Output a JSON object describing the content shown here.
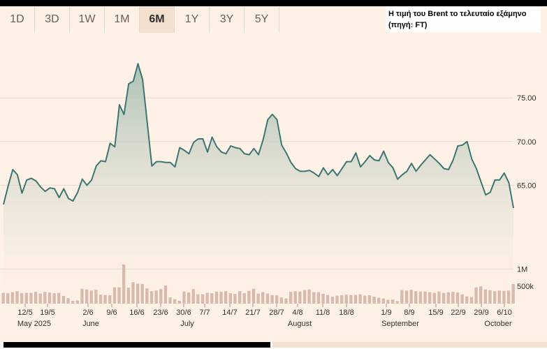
{
  "caption": {
    "line1": "Η τιμή του Brent το τελευταίο εξάμηνο",
    "line2": "(πηγή: FT)"
  },
  "tabs": [
    {
      "label": "1D",
      "active": false
    },
    {
      "label": "3D",
      "active": false
    },
    {
      "label": "1W",
      "active": false
    },
    {
      "label": "1M",
      "active": false
    },
    {
      "label": "6M",
      "active": true
    },
    {
      "label": "1Y",
      "active": false
    },
    {
      "label": "3Y",
      "active": false
    },
    {
      "label": "5Y",
      "active": false
    }
  ],
  "colors": {
    "line": "#3d7575",
    "fill_top": "#a8bfb3",
    "fill_bottom": "#fff1e5",
    "volume": "#d8b9ab",
    "grid": "#e6d9ce",
    "text": "#33302e"
  },
  "chart_data": {
    "type": "line",
    "ylim": [
      58,
      82
    ],
    "y_ticks": [
      "65.00",
      "70.00",
      "75.00"
    ],
    "y_tick_values": [
      65,
      70,
      75
    ],
    "x_tick_labels": [
      "12/5",
      "19/5",
      "2/6",
      "9/6",
      "16/6",
      "23/6",
      "30/6",
      "7/7",
      "14/7",
      "21/7",
      "28/7",
      "4/8",
      "11/8",
      "18/8",
      "1/9",
      "8/9",
      "15/9",
      "22/9",
      "29/9",
      "6/10"
    ],
    "month_labels": [
      "May 2025",
      "June",
      "July",
      "August",
      "September",
      "October"
    ],
    "price": [
      62.8,
      64.9,
      66.8,
      66.2,
      64.1,
      65.6,
      65.8,
      65.5,
      64.8,
      64.3,
      64.7,
      64.6,
      63.6,
      64.6,
      63.5,
      63.2,
      64.2,
      65.7,
      65.0,
      65.6,
      67.2,
      67.8,
      67.7,
      69.8,
      69.4,
      74.2,
      73.1,
      76.6,
      76.9,
      78.9,
      77.1,
      72.2,
      67.2,
      67.7,
      67.7,
      67.6,
      67.6,
      67.1,
      69.3,
      69.0,
      68.6,
      69.9,
      70.3,
      70.3,
      68.8,
      70.5,
      69.4,
      68.8,
      68.6,
      69.5,
      69.3,
      69.2,
      68.6,
      68.5,
      69.2,
      68.5,
      70.2,
      72.5,
      73.1,
      72.5,
      69.6,
      68.7,
      67.6,
      66.9,
      66.6,
      66.6,
      66.7,
      66.4,
      66.0,
      67.0,
      66.2,
      66.8,
      66.1,
      66.9,
      67.7,
      67.7,
      68.7,
      67.1,
      67.7,
      68.4,
      67.9,
      67.8,
      68.9,
      67.6,
      67.0,
      65.7,
      66.2,
      66.6,
      67.5,
      66.6,
      67.3,
      67.9,
      68.5,
      68.0,
      67.5,
      66.9,
      66.8,
      67.9,
      69.5,
      69.6,
      70.0,
      68.0,
      66.9,
      65.4,
      63.9,
      64.2,
      65.6,
      65.6,
      66.4,
      65.3,
      62.4
    ],
    "volume_ticks": [
      "500k",
      "1M"
    ],
    "volume_tick_values": [
      500000,
      1000000
    ],
    "volume": [
      310000,
      300000,
      330000,
      360000,
      300000,
      310000,
      310000,
      340000,
      290000,
      340000,
      320000,
      300000,
      310000,
      220000,
      160000,
      80000,
      90000,
      430000,
      410000,
      380000,
      400000,
      260000,
      250000,
      240000,
      470000,
      470000,
      1130000,
      460000,
      620000,
      580000,
      570000,
      440000,
      360000,
      380000,
      420000,
      520000,
      180000,
      130000,
      80000,
      350000,
      320000,
      420000,
      270000,
      270000,
      310000,
      300000,
      350000,
      340000,
      360000,
      300000,
      280000,
      360000,
      300000,
      370000,
      430000,
      290000,
      330000,
      290000,
      250000,
      240000,
      180000,
      150000,
      340000,
      360000,
      350000,
      390000,
      410000,
      330000,
      330000,
      280000,
      250000,
      200000,
      230000,
      240000,
      260000,
      250000,
      250000,
      270000,
      230000,
      240000,
      200000,
      170000,
      150000,
      110000,
      120000,
      70000,
      390000,
      380000,
      400000,
      360000,
      350000,
      350000,
      330000,
      310000,
      350000,
      310000,
      330000,
      340000,
      320000,
      270000,
      210000,
      190000,
      470000,
      500000,
      410000,
      390000,
      360000,
      380000,
      370000,
      380000,
      570000
    ]
  }
}
